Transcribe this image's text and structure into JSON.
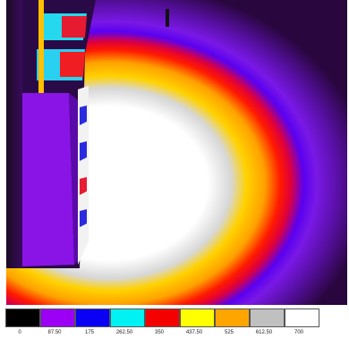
{
  "legend": {
    "colors": [
      "#000000",
      "#9b00f5",
      "#0a00f5",
      "#00f2f2",
      "#f50000",
      "#ffff00",
      "#ffa500",
      "#c0c0c0",
      "#ffffff"
    ],
    "ticks": [
      "0",
      "87.50",
      "175",
      "262.50",
      "350",
      "437.50",
      "525",
      "612.50",
      "700"
    ]
  }
}
